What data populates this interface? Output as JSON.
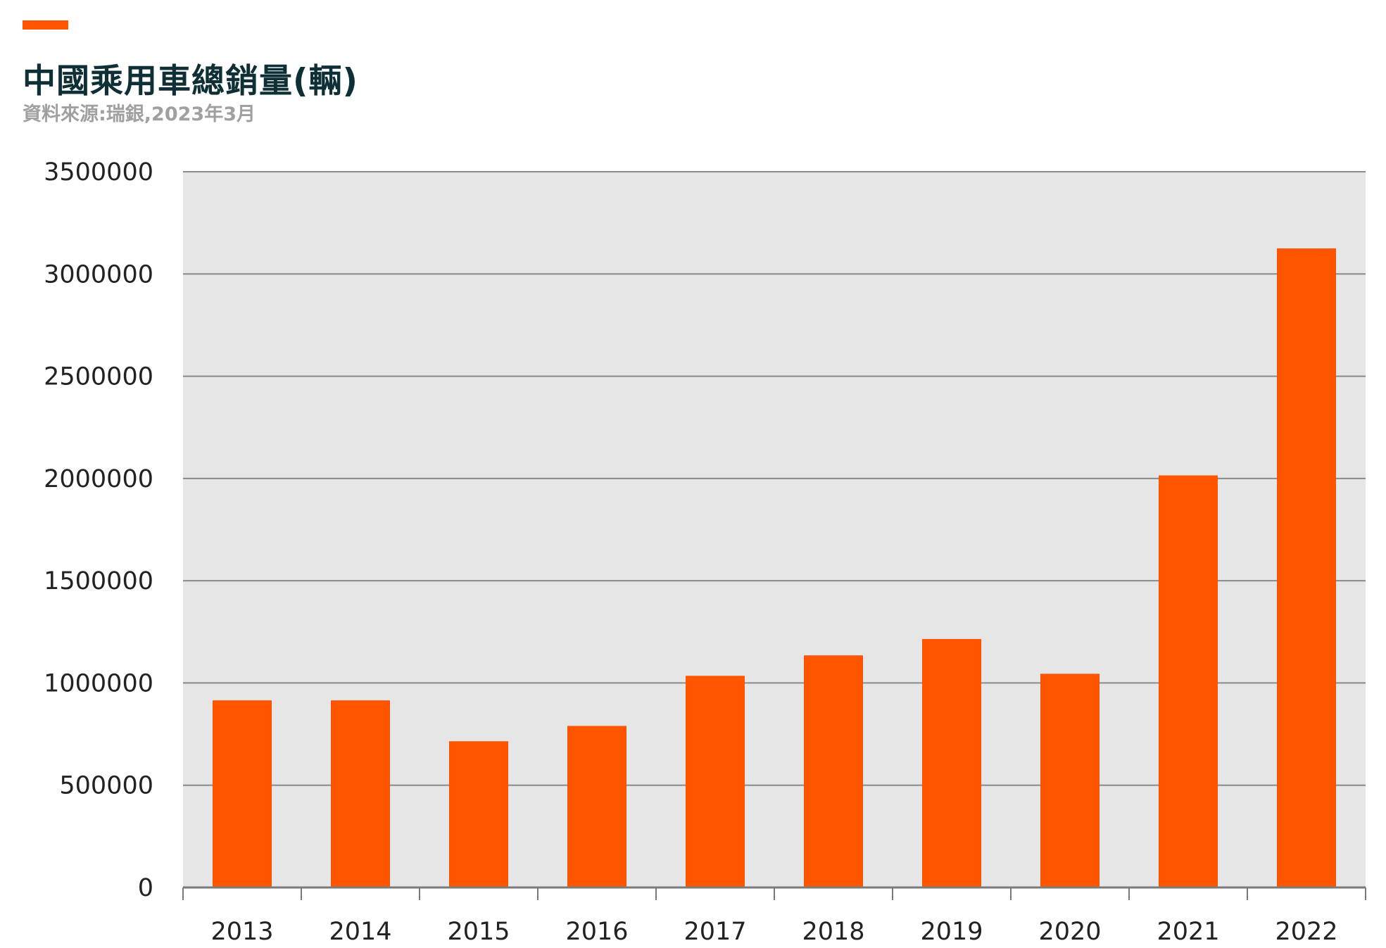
{
  "header": {
    "title": "中國乘用車總銷量(輛)",
    "source": "資料來源:瑞銀,2023年3月"
  },
  "colors": {
    "accent": "#ff5500",
    "bar": "#ff5500",
    "plot_background": "#e6e6e6",
    "gridline": "#8a8a8a",
    "title": "#0e2f35",
    "source": "#a0a0a0"
  },
  "chart_data": {
    "type": "bar",
    "categories": [
      "2013",
      "2014",
      "2015",
      "2016",
      "2017",
      "2018",
      "2019",
      "2020",
      "2021",
      "2022"
    ],
    "values": [
      915000,
      915000,
      715000,
      790000,
      1035000,
      1135000,
      1215000,
      1045000,
      2015000,
      3125000
    ],
    "yticks": [
      "3500000",
      "3000000",
      "2500000",
      "2000000",
      "1500000",
      "1000000",
      "500000",
      "0"
    ],
    "ylim": [
      0,
      3500000
    ],
    "grid": true,
    "legend": "none",
    "title": "",
    "xlabel": "",
    "ylabel": ""
  }
}
